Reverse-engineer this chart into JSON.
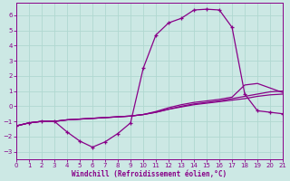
{
  "xlabel": "Windchill (Refroidissement éolien,°C)",
  "bg_color": "#cce8e4",
  "grid_color": "#b0d8d0",
  "line_color": "#880088",
  "xlim": [
    0,
    21
  ],
  "ylim": [
    -3.5,
    6.8
  ],
  "xticks": [
    0,
    1,
    2,
    3,
    4,
    5,
    6,
    7,
    8,
    9,
    10,
    11,
    12,
    13,
    14,
    15,
    16,
    17,
    18,
    19,
    20,
    21
  ],
  "yticks": [
    -3,
    -2,
    -1,
    0,
    1,
    2,
    3,
    4,
    5,
    6
  ],
  "line1_x": [
    0,
    1,
    2,
    3,
    4,
    5,
    6,
    7,
    8,
    9,
    10,
    11,
    12,
    13,
    14,
    15,
    16,
    17,
    18,
    19,
    20,
    21
  ],
  "line1_y": [
    -1.3,
    -1.1,
    -1.0,
    -1.0,
    -1.7,
    -2.3,
    -2.7,
    -2.35,
    -1.8,
    -1.1,
    2.5,
    4.7,
    5.5,
    5.8,
    6.35,
    6.4,
    6.35,
    5.2,
    0.8,
    -0.3,
    -0.4,
    -0.5
  ],
  "line2_x": [
    0,
    1,
    2,
    3,
    4,
    5,
    6,
    7,
    8,
    9,
    10,
    11,
    12,
    13,
    14,
    15,
    16,
    17,
    18,
    19,
    20,
    21
  ],
  "line2_y": [
    -1.3,
    -1.1,
    -1.0,
    -1.0,
    -0.9,
    -0.85,
    -0.8,
    -0.75,
    -0.7,
    -0.65,
    -0.55,
    -0.4,
    -0.2,
    -0.05,
    0.1,
    0.2,
    0.3,
    0.4,
    0.5,
    0.65,
    0.75,
    0.8
  ],
  "line3_x": [
    0,
    1,
    2,
    3,
    4,
    5,
    6,
    7,
    8,
    9,
    10,
    11,
    12,
    13,
    14,
    15,
    16,
    17,
    18,
    19,
    20,
    21
  ],
  "line3_y": [
    -1.3,
    -1.1,
    -1.0,
    -1.0,
    -0.9,
    -0.85,
    -0.8,
    -0.75,
    -0.7,
    -0.65,
    -0.55,
    -0.4,
    -0.2,
    -0.0,
    0.15,
    0.25,
    0.35,
    0.5,
    0.65,
    0.8,
    0.95,
    1.0
  ],
  "line4_x": [
    0,
    1,
    2,
    3,
    4,
    5,
    6,
    7,
    8,
    9,
    10,
    11,
    12,
    13,
    14,
    15,
    16,
    17,
    18,
    19,
    20,
    21
  ],
  "line4_y": [
    -1.3,
    -1.1,
    -1.0,
    -1.0,
    -0.9,
    -0.85,
    -0.8,
    -0.75,
    -0.7,
    -0.65,
    -0.55,
    -0.35,
    -0.1,
    0.1,
    0.25,
    0.35,
    0.45,
    0.6,
    1.4,
    1.5,
    1.2,
    0.9
  ]
}
